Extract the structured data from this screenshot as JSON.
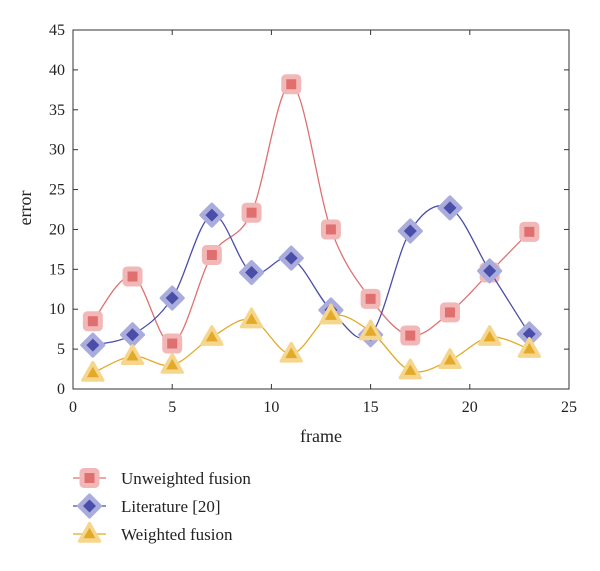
{
  "chart_data": {
    "type": "line",
    "xlabel": "frame",
    "ylabel": "error",
    "xlim": [
      0,
      25
    ],
    "ylim": [
      0,
      45
    ],
    "xticks": [
      0,
      5,
      10,
      15,
      20,
      25
    ],
    "yticks": [
      0,
      5,
      10,
      15,
      20,
      25,
      30,
      35,
      40,
      45
    ],
    "grid": false,
    "legend_position": "bottom-left, below plot",
    "x": [
      1,
      3,
      5,
      7,
      9,
      11,
      13,
      15,
      17,
      19,
      21,
      23
    ],
    "series": [
      {
        "name": "Unweighted fusion",
        "marker": "square",
        "color": "#e07070",
        "halo_color": "#f2b8b8",
        "values": [
          8.5,
          14.1,
          5.7,
          16.8,
          22.1,
          38.2,
          20.0,
          11.3,
          6.7,
          9.6,
          14.6,
          19.7
        ]
      },
      {
        "name": "Literature [20]",
        "marker": "diamond",
        "color": "#4a4ea8",
        "halo_color": "#a9acdc",
        "values": [
          5.5,
          6.8,
          11.4,
          21.8,
          14.6,
          16.4,
          9.9,
          6.8,
          19.8,
          22.7,
          14.8,
          6.9
        ]
      },
      {
        "name": "Weighted fusion",
        "marker": "triangle",
        "color": "#e3a928",
        "halo_color": "#f5d68c",
        "values": [
          2.0,
          4.1,
          3.0,
          6.5,
          8.7,
          4.4,
          9.2,
          7.2,
          2.3,
          3.6,
          6.5,
          5.0
        ]
      }
    ]
  }
}
